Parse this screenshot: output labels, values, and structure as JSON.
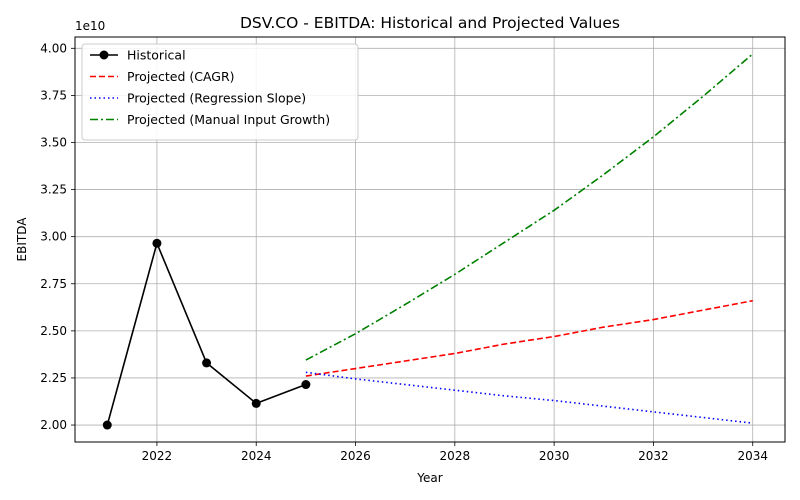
{
  "chart_data": {
    "type": "line",
    "title": "DSV.CO - EBITDA: Historical and Projected Values",
    "xlabel": "Year",
    "ylabel": "EBITDA",
    "y_offset_label": "1e10",
    "y_scale": 10000000000,
    "xlim": [
      2020.35,
      2034.65
    ],
    "ylim": [
      19100000000.0,
      40600000000.0
    ],
    "x_ticks": [
      2022,
      2024,
      2026,
      2028,
      2030,
      2032,
      2034
    ],
    "y_ticks": [
      2.0,
      2.25,
      2.5,
      2.75,
      3.0,
      3.25,
      3.5,
      3.75,
      4.0
    ],
    "y_tick_labels": [
      "2.00",
      "2.25",
      "2.50",
      "2.75",
      "3.00",
      "3.25",
      "3.50",
      "3.75",
      "4.00"
    ],
    "grid": true,
    "legend_position": "upper-left",
    "series": [
      {
        "name": "Historical",
        "style": "solid",
        "marker": "circle",
        "color": "#000000",
        "x": [
          2021,
          2022,
          2023,
          2024,
          2025
        ],
        "y": [
          20000000000.0,
          29650000000.0,
          23300000000.0,
          21150000000.0,
          22150000000.0
        ]
      },
      {
        "name": "Projected (CAGR)",
        "style": "dashed",
        "color": "#ff0000",
        "x": [
          2025,
          2026,
          2027,
          2028,
          2029,
          2030,
          2031,
          2032,
          2033,
          2034
        ],
        "y": [
          22600000000.0,
          23000000000.0,
          23400000000.0,
          23800000000.0,
          24300000000.0,
          24700000000.0,
          25200000000.0,
          25600000000.0,
          26100000000.0,
          26600000000.0
        ]
      },
      {
        "name": "Projected (Regression Slope)",
        "style": "dotted",
        "color": "#0000ff",
        "x": [
          2025,
          2026,
          2027,
          2028,
          2029,
          2030,
          2031,
          2032,
          2033,
          2034
        ],
        "y": [
          22800000000.0,
          22450000000.0,
          22150000000.0,
          21850000000.0,
          21550000000.0,
          21300000000.0,
          21000000000.0,
          20700000000.0,
          20400000000.0,
          20100000000.0
        ]
      },
      {
        "name": "Projected (Manual Input Growth)",
        "style": "dashdot",
        "color": "#008000",
        "x": [
          2025,
          2026,
          2027,
          2028,
          2029,
          2030,
          2031,
          2032,
          2033,
          2034
        ],
        "y": [
          23450000000.0,
          24850000000.0,
          26400000000.0,
          28000000000.0,
          29700000000.0,
          31400000000.0,
          33300000000.0,
          35300000000.0,
          37450000000.0,
          39700000000.0
        ]
      }
    ]
  }
}
